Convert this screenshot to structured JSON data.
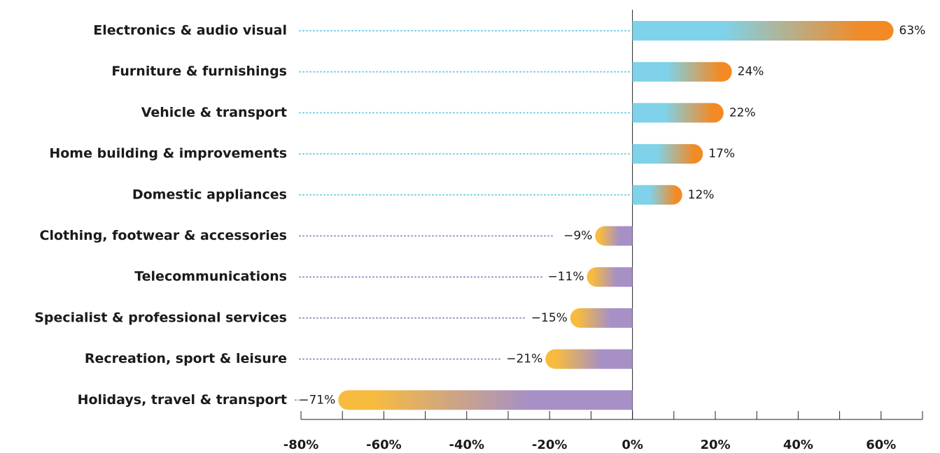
{
  "chart_data": {
    "type": "bar",
    "orientation": "horizontal",
    "categories": [
      "Electronics & audio visual",
      "Furniture & furnishings",
      "Vehicle & transport",
      "Home building & improvements",
      "Domestic appliances",
      "Clothing, footwear & accessories",
      "Telecommunications",
      "Specialist & professional services",
      "Recreation, sport & leisure",
      "Holidays, travel & transport"
    ],
    "values": [
      63,
      24,
      22,
      17,
      12,
      -9,
      -11,
      -15,
      -21,
      -71
    ],
    "value_labels": [
      "63%",
      "24%",
      "22%",
      "17%",
      "12%",
      "−9%",
      "−11%",
      "−15%",
      "−21%",
      "−71%"
    ],
    "xlim": [
      -80,
      70
    ],
    "xticks": [
      {
        "value": -80,
        "label": "-80%"
      },
      {
        "value": -60,
        "label": "-60%"
      },
      {
        "value": -40,
        "label": "-40%"
      },
      {
        "value": -20,
        "label": "-20%"
      },
      {
        "value": 0,
        "label": "0%"
      },
      {
        "value": 20,
        "label": "20%"
      },
      {
        "value": 40,
        "label": "40%"
      },
      {
        "value": 60,
        "label": "60%"
      }
    ],
    "xminorticks": [
      -70,
      -50,
      -30,
      -10,
      10,
      30,
      50,
      70
    ],
    "colors": {
      "positive": [
        "#7fd2e9",
        "#f28a25"
      ],
      "negative": [
        "#a690c6",
        "#f7bb3f"
      ],
      "leader_positive": "#6ccde8",
      "leader_negative": "#9f8cc4"
    }
  }
}
